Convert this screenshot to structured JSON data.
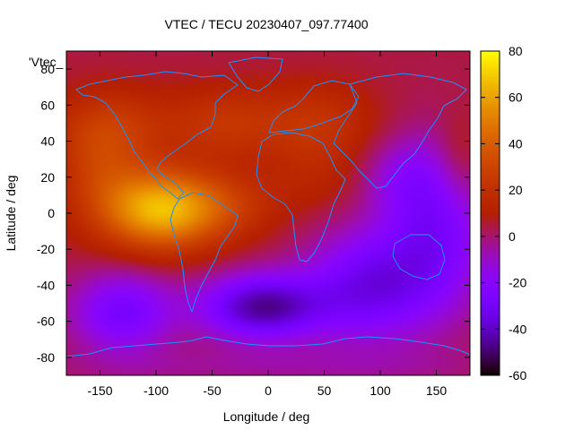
{
  "chart_data": {
    "type": "heatmap",
    "title": "VTEC / TECU 20230407_097.77400",
    "xlabel": "Longitude / deg",
    "ylabel": "Latitude / deg",
    "overlay_label": "'Vtec_",
    "xlim": [
      -180,
      180
    ],
    "ylim": [
      -90,
      90
    ],
    "x_ticks": [
      -150,
      -100,
      -50,
      0,
      50,
      100,
      150
    ],
    "y_ticks": [
      -80,
      -60,
      -40,
      -20,
      0,
      20,
      40,
      60,
      80
    ],
    "colorbar": {
      "range": [
        -60,
        80
      ],
      "ticks": [
        -60,
        -40,
        -20,
        0,
        20,
        40,
        60,
        80
      ],
      "palette": "gnuplot"
    },
    "grid": false,
    "legend": "none",
    "coastline_color": "#1e90ff",
    "field_features": [
      {
        "name": "equatorial-anomaly-peak",
        "lon": -95,
        "lat": 0,
        "value": 70
      },
      {
        "name": "south-atlantic-minimum",
        "lon": -5,
        "lat": -52,
        "value": -45
      },
      {
        "name": "south-pacific-low",
        "lon": -130,
        "lat": -55,
        "value": -28
      },
      {
        "name": "indian-ocean-low",
        "lon": 90,
        "lat": -45,
        "value": -32
      }
    ]
  }
}
